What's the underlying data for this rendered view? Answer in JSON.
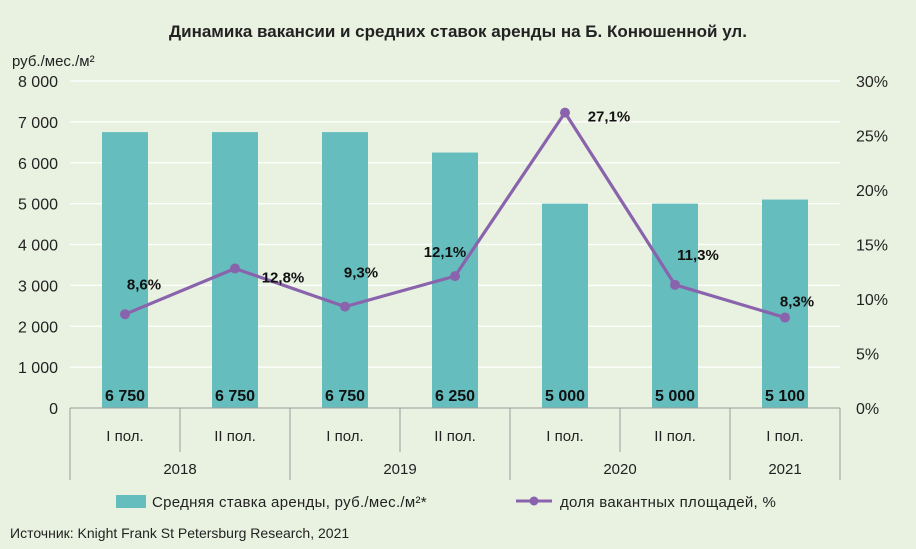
{
  "colors": {
    "background": "#e9f2e1",
    "bar": "#66bdbd",
    "line": "#8a63ad",
    "grid": "#ffffff",
    "axis": "#9a9a9a"
  },
  "chart_data": {
    "type": "bar",
    "title": "Динамика вакансии и средних ставок аренды на Б. Конюшенной ул.",
    "ylabel": "руб./мес./м²",
    "y_ticks": [
      "8 000",
      "7 000",
      "6 000",
      "5 000",
      "4 000",
      "3 000",
      "2 000",
      "1 000",
      "0"
    ],
    "y2_ticks": [
      "30%",
      "25%",
      "20%",
      "15%",
      "10%",
      "5%",
      "0%"
    ],
    "ylim": [
      0,
      8000
    ],
    "y2lim": [
      0,
      30
    ],
    "categories": [
      "I пол.",
      "II пол.",
      "I пол.",
      "II пол.",
      "I пол.",
      "II пол.",
      "I пол."
    ],
    "groups": [
      {
        "label": "2018",
        "span": 2
      },
      {
        "label": "2019",
        "span": 2
      },
      {
        "label": "2020",
        "span": 2
      },
      {
        "label": "2021",
        "span": 1
      }
    ],
    "series": [
      {
        "name": "Средняя ставка аренды, руб./мес./м²*",
        "type": "bar",
        "axis": "left",
        "values": [
          6750,
          6750,
          6750,
          6250,
          5000,
          5000,
          5100
        ],
        "labels": [
          "6 750",
          "6 750",
          "6 750",
          "6 250",
          "5 000",
          "5 000",
          "5 100"
        ]
      },
      {
        "name": "доля вакантных площадей, %",
        "type": "line",
        "axis": "right",
        "values": [
          8.6,
          12.8,
          9.3,
          12.1,
          27.1,
          11.3,
          8.3
        ],
        "labels": [
          "8,6%",
          "12,8%",
          "9,3%",
          "12,1%",
          "27,1%",
          "11,3%",
          "8,3%"
        ]
      }
    ],
    "grid": true,
    "legend": "bottom",
    "source": "Источник: Knight Frank St Petersburg Research, 2021"
  }
}
